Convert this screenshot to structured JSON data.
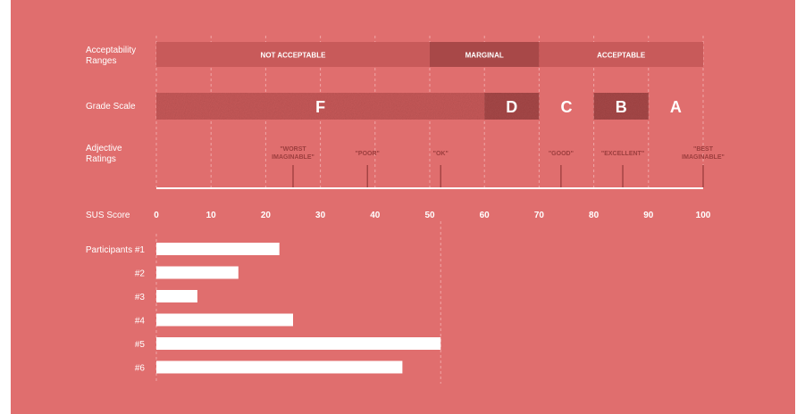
{
  "chart_data": {
    "type": "bar",
    "title": "",
    "colors": {
      "background": "#e06e6e",
      "band_dark": "#c85a5a",
      "band_darker": "#a84848",
      "bar": "#ffffff",
      "text_light": "#ffffff",
      "text_dark": "#9c3e3e",
      "grid": "#f4b4b4"
    },
    "row_labels": {
      "acceptability": "Acceptability\nRanges",
      "grade": "Grade Scale",
      "adjective": "Adjective\nRatings",
      "sus": "SUS Score"
    },
    "xlim": [
      0,
      100
    ],
    "ticks": [
      "0",
      "10",
      "20",
      "30",
      "40",
      "50",
      "60",
      "70",
      "80",
      "90",
      "100"
    ],
    "acceptability_ranges": [
      {
        "label": "NOT ACCEPTABLE",
        "start": 0,
        "end": 50,
        "shade": "band_dark"
      },
      {
        "label": "MARGINAL",
        "start": 50,
        "end": 70,
        "shade": "band_darker"
      },
      {
        "label": "ACCEPTABLE",
        "start": 70,
        "end": 100,
        "shade": "band_dark"
      }
    ],
    "grades": [
      {
        "label": "F",
        "start": 0,
        "end": 60,
        "shade": "band_dark"
      },
      {
        "label": "D",
        "start": 60,
        "end": 70,
        "shade": "band_darker"
      },
      {
        "label": "C",
        "start": 70,
        "end": 80,
        "shade": "none"
      },
      {
        "label": "B",
        "start": 80,
        "end": 90,
        "shade": "band_darker"
      },
      {
        "label": "A",
        "start": 90,
        "end": 100,
        "shade": "none"
      }
    ],
    "adjectives": [
      {
        "label": "\"WORST\nIMAGINABLE\"",
        "value": 25
      },
      {
        "label": "\"POOR\"",
        "value": 38.6
      },
      {
        "label": "\"OK\"",
        "value": 52
      },
      {
        "label": "\"GOOD\"",
        "value": 74
      },
      {
        "label": "\"EXCELLENT\"",
        "value": 85.3
      },
      {
        "label": "\"BEST\nIMAGINABLE\"",
        "value": 100
      }
    ],
    "categories": [
      "Participants #1",
      "#2",
      "#3",
      "#4",
      "#5",
      "#6"
    ],
    "values": [
      22.5,
      15,
      7.5,
      25,
      52,
      45
    ],
    "reference_line": 52
  }
}
